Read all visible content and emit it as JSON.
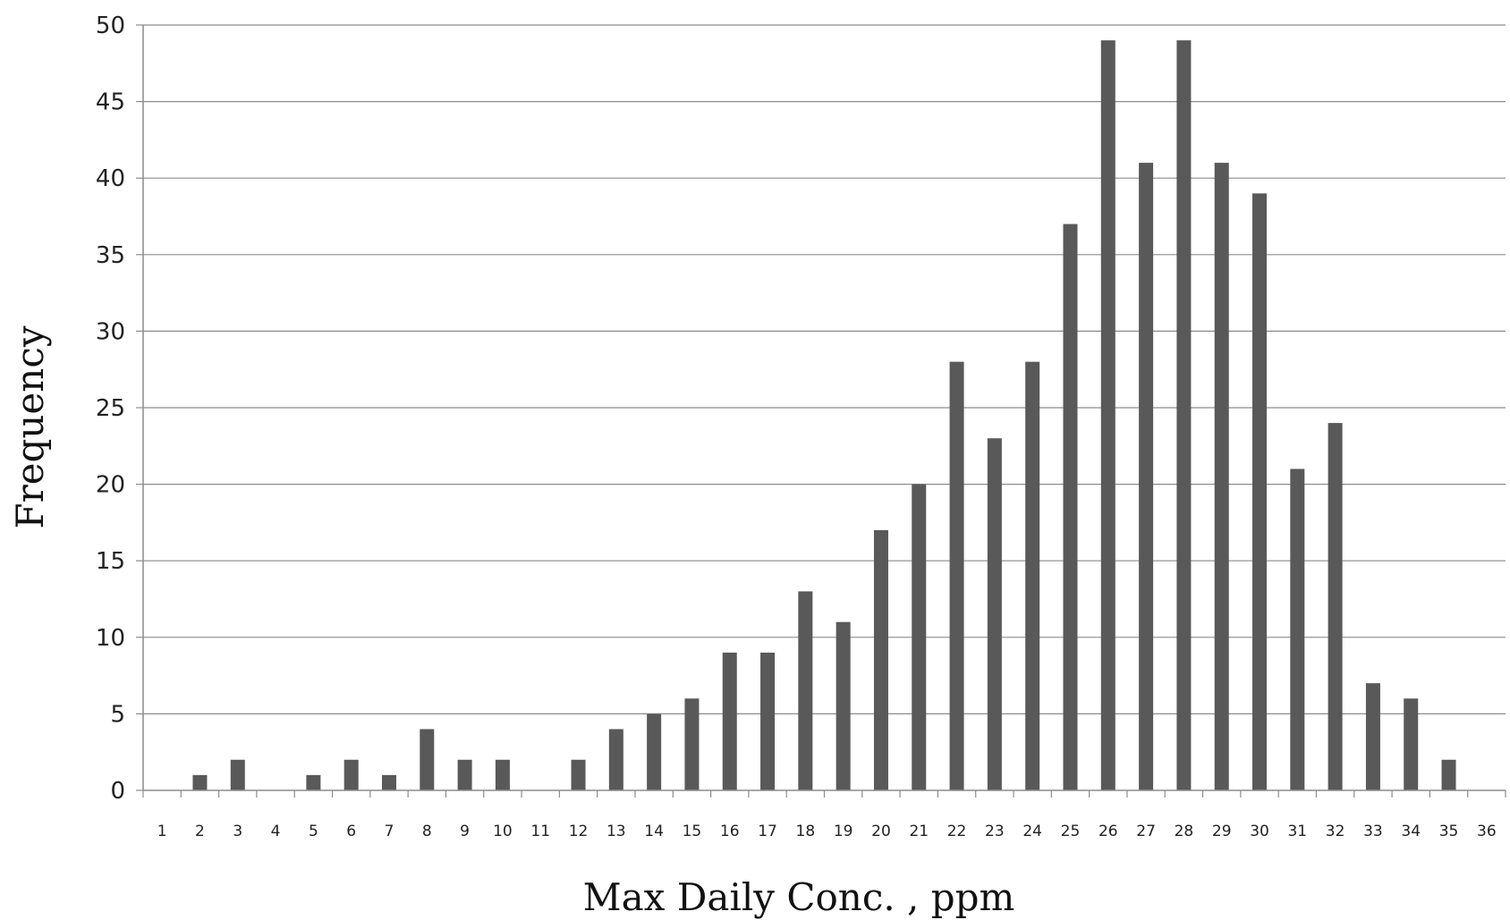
{
  "chart_data": {
    "type": "bar",
    "title": "",
    "xlabel": "Max Daily Conc. , ppm",
    "ylabel": "Frequency",
    "ylim": [
      0,
      50
    ],
    "yticks": [
      0,
      5,
      10,
      15,
      20,
      25,
      30,
      35,
      40,
      45,
      50
    ],
    "grid": true,
    "legend": "none",
    "bar_color": "#595959",
    "categories": [
      "1",
      "2",
      "3",
      "4",
      "5",
      "6",
      "7",
      "8",
      "9",
      "10",
      "11",
      "12",
      "13",
      "14",
      "15",
      "16",
      "17",
      "18",
      "19",
      "20",
      "21",
      "22",
      "23",
      "24",
      "25",
      "26",
      "27",
      "28",
      "29",
      "30",
      "31",
      "32",
      "33",
      "34",
      "35",
      "36"
    ],
    "values": [
      0,
      1,
      2,
      0,
      1,
      2,
      1,
      4,
      2,
      2,
      0,
      2,
      4,
      5,
      6,
      9,
      9,
      13,
      11,
      17,
      20,
      28,
      23,
      28,
      37,
      49,
      41,
      49,
      41,
      39,
      21,
      24,
      7,
      6,
      2,
      0
    ]
  }
}
